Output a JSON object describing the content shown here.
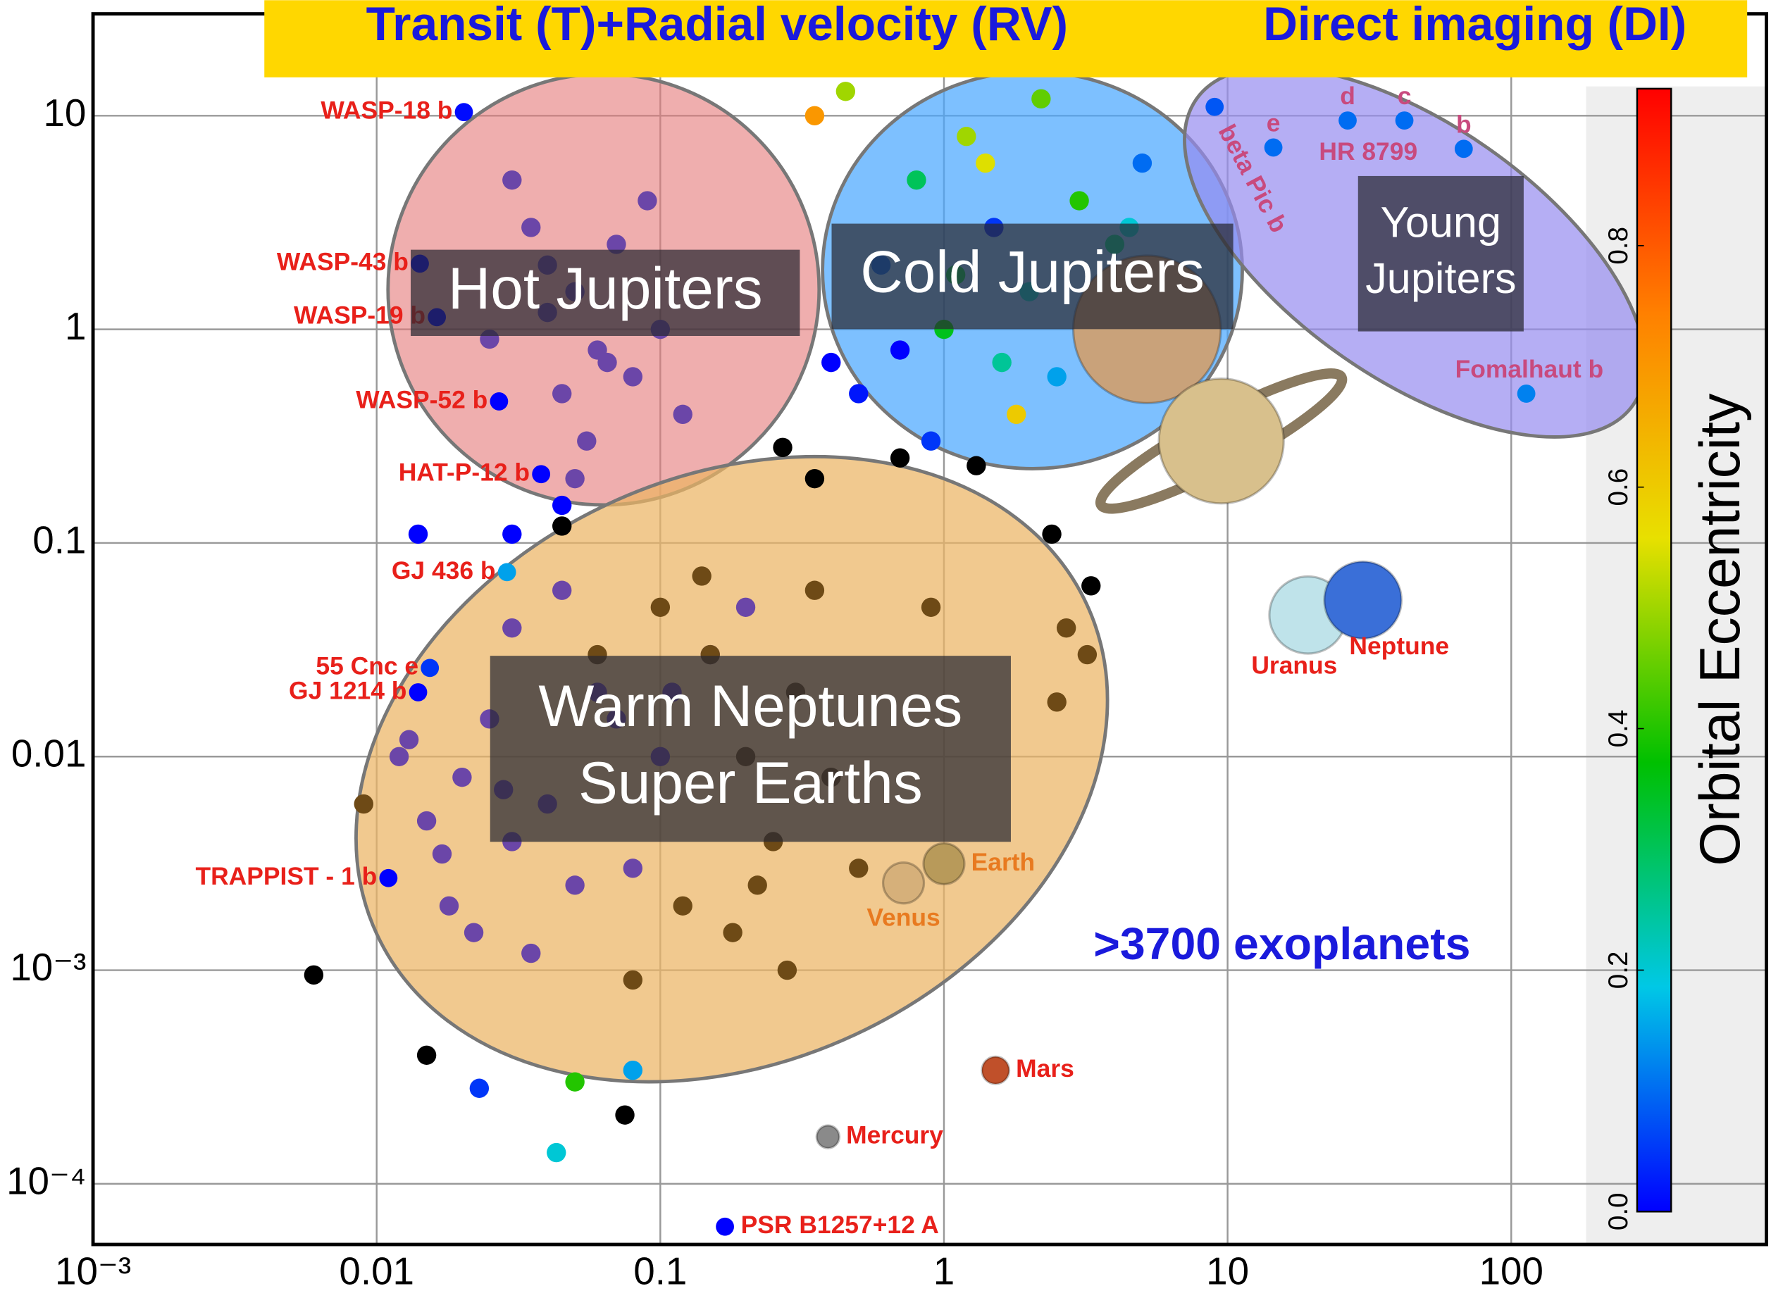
{
  "chart_data": {
    "type": "scatter",
    "header": [
      "Transit (T)+Radial velocity (RV)",
      "Direct imaging (DI)"
    ],
    "annotation": ">3700 exoplanets",
    "regions": {
      "hot": [
        "Hot Jupiters"
      ],
      "cold": [
        "Cold Jupiters"
      ],
      "young": [
        "Young",
        "Jupiters"
      ],
      "warm": [
        "Warm Neptunes",
        "Super Earths"
      ]
    },
    "xlim": [
      0.001,
      794
    ],
    "ylim": [
      5.2e-05,
      30
    ],
    "log_x": true,
    "log_y": true,
    "grid": true,
    "xticks": [
      {
        "value": 0.001,
        "label": "10⁻³"
      },
      0.01,
      0.1,
      1,
      10,
      100
    ],
    "yticks": [
      {
        "value": 0.0001,
        "label": "10⁻⁴"
      },
      {
        "value": 0.001,
        "label": "10⁻³"
      },
      0.01,
      0.1,
      1,
      10
    ],
    "colorbar": {
      "title": "Orbital Eccentricity",
      "clim": [
        0,
        0.93
      ],
      "ticks": [
        {
          "value": 0,
          "label": "0.0"
        },
        0.2,
        0.4,
        0.6,
        0.8
      ],
      "colormap": [
        "#0000ff",
        "#00c8e6",
        "#00c000",
        "#e8e000",
        "#ff8000",
        "#ff0000"
      ]
    },
    "groups": [
      {
        "color": "#6b46a8",
        "x": [
          0.03,
          0.04,
          0.05,
          0.06,
          0.045,
          0.035,
          0.08,
          0.1,
          0.055,
          0.025,
          0.07,
          0.12,
          0.05,
          0.04,
          0.065,
          0.09,
          0.012,
          0.015,
          0.02,
          0.03,
          0.018,
          0.025,
          0.04,
          0.06,
          0.08,
          0.1,
          0.15,
          0.2,
          0.013,
          0.022,
          0.035,
          0.05,
          0.07,
          0.03,
          0.045,
          0.11,
          0.017,
          0.028
        ],
        "y": [
          5,
          2,
          1.5,
          0.8,
          0.5,
          3,
          0.6,
          1,
          0.3,
          0.9,
          2.5,
          0.4,
          0.2,
          1.2,
          0.7,
          4,
          0.01,
          0.005,
          0.008,
          0.004,
          0.002,
          0.015,
          0.006,
          0.02,
          0.003,
          0.01,
          0.03,
          0.05,
          0.012,
          0.0015,
          0.0012,
          0.0025,
          0.015,
          0.04,
          0.06,
          0.02,
          0.0035,
          0.007
        ]
      },
      {
        "color": "#6e4a16",
        "x": [
          0.1,
          0.15,
          0.2,
          0.3,
          0.25,
          0.12,
          0.18,
          0.4,
          0.5,
          0.08,
          0.22,
          0.35,
          0.06,
          0.14,
          0.9,
          2.7,
          3.2,
          2.5,
          0.009,
          0.28
        ],
        "y": [
          0.05,
          0.03,
          0.01,
          0.02,
          0.004,
          0.002,
          0.0015,
          0.008,
          0.003,
          0.0009,
          0.0025,
          0.06,
          0.03,
          0.07,
          0.05,
          0.04,
          0.03,
          0.018,
          0.006,
          0.001
        ]
      },
      {
        "color": "#000000",
        "x": [
          0.006,
          0.015,
          0.075,
          0.045,
          0.27,
          0.35,
          0.7,
          1.3,
          2.4,
          3.3,
          4.7
        ],
        "y": [
          0.00095,
          0.0004,
          0.00021,
          0.12,
          0.28,
          0.2,
          0.25,
          0.23,
          0.11,
          0.063,
          1.3
        ]
      }
    ],
    "eccentric_points": {
      "x": [
        0.6,
        0.8,
        1.2,
        1.5,
        2,
        2.5,
        3,
        4,
        5,
        0.7,
        1,
        1.8,
        2.2,
        3.5,
        4.5,
        0.9,
        1.1,
        1.4,
        0.5,
        0.4,
        0.35,
        0.45,
        0.014,
        0.03,
        0.045,
        0.023,
        0.043,
        0.05,
        0.08,
        1.6
      ],
      "y": [
        2,
        5,
        8,
        3,
        1.5,
        0.6,
        4,
        2.5,
        6,
        0.8,
        1,
        0.4,
        12,
        0.9,
        3,
        0.3,
        1.8,
        6,
        0.5,
        0.7,
        10,
        13,
        0.11,
        0.11,
        0.15,
        0.00028,
        0.00014,
        0.0003,
        0.00034,
        0.7
      ],
      "eccentricity": [
        0.1,
        0.3,
        0.5,
        0.05,
        0.2,
        0.15,
        0.4,
        0.25,
        0.1,
        0,
        0.35,
        0.6,
        0.45,
        0.1,
        0.2,
        0.05,
        0.3,
        0.55,
        0.02,
        0,
        0.7,
        0.5,
        0,
        0,
        0,
        0.05,
        0.2,
        0.4,
        0.15,
        0.25
      ]
    },
    "named_planets": [
      {
        "label": "WASP-18 b",
        "x": 0.0203,
        "y": 10.4,
        "eccentricity": 0.01
      },
      {
        "label": "WASP-43 b",
        "x": 0.0142,
        "y": 2.03,
        "eccentricity": 0.0
      },
      {
        "label": "WASP-19 b",
        "x": 0.0163,
        "y": 1.14,
        "eccentricity": 0.0
      },
      {
        "label": "WASP-52 b",
        "x": 0.027,
        "y": 0.46,
        "eccentricity": 0.0
      },
      {
        "label": "HAT-P-12 b",
        "x": 0.038,
        "y": 0.21,
        "eccentricity": 0.0
      },
      {
        "label": "GJ 436 b",
        "x": 0.0288,
        "y": 0.073,
        "eccentricity": 0.15
      },
      {
        "label": "55 Cnc e",
        "x": 0.0154,
        "y": 0.026,
        "eccentricity": 0.05
      },
      {
        "label": "GJ 1214 b",
        "x": 0.014,
        "y": 0.02,
        "eccentricity": 0.0
      },
      {
        "label": "TRAPPIST - 1 b",
        "x": 0.011,
        "y": 0.0027,
        "eccentricity": 0.0
      },
      {
        "label": "PSR B1257+12 A",
        "x": 0.169,
        "y": 6.3e-05,
        "eccentricity": 0.0
      },
      {
        "label": "beta Pic b",
        "x": 9,
        "y": 11,
        "eccentricity": 0.08
      },
      {
        "label": "e",
        "x": 14.5,
        "y": 7.1,
        "eccentricity": 0.1
      },
      {
        "label": "d",
        "x": 26.5,
        "y": 9.5,
        "eccentricity": 0.1
      },
      {
        "label": "c",
        "x": 42,
        "y": 9.5,
        "eccentricity": 0.1
      },
      {
        "label": "b",
        "x": 68,
        "y": 7,
        "eccentricity": 0.1
      },
      {
        "label": "Fomalhaut b",
        "x": 113,
        "y": 0.5,
        "eccentricity": 0.12
      }
    ],
    "system_label": "HR 8799",
    "solar_system": [
      {
        "label": "Earth",
        "x": 1,
        "y": 0.00315,
        "color": "#b89a5a"
      },
      {
        "label": "Venus",
        "x": 0.72,
        "y": 0.00256,
        "color": "#d6b07a"
      },
      {
        "label": "Mars",
        "x": 1.52,
        "y": 0.00034,
        "color": "#c0502a"
      },
      {
        "label": "Mercury",
        "x": 0.39,
        "y": 0.000166,
        "color": "#8a8a8a"
      },
      {
        "label": "Uranus",
        "x": 19.2,
        "y": 0.046,
        "color": "#bfe3ea"
      },
      {
        "label": "Neptune",
        "x": 30,
        "y": 0.054,
        "color": "#3a6fd8"
      },
      {
        "x": 5.2,
        "y": 1,
        "color": "#c9a27a"
      },
      {
        "x": 9.5,
        "y": 0.3,
        "color": "#d8c08c"
      }
    ]
  }
}
